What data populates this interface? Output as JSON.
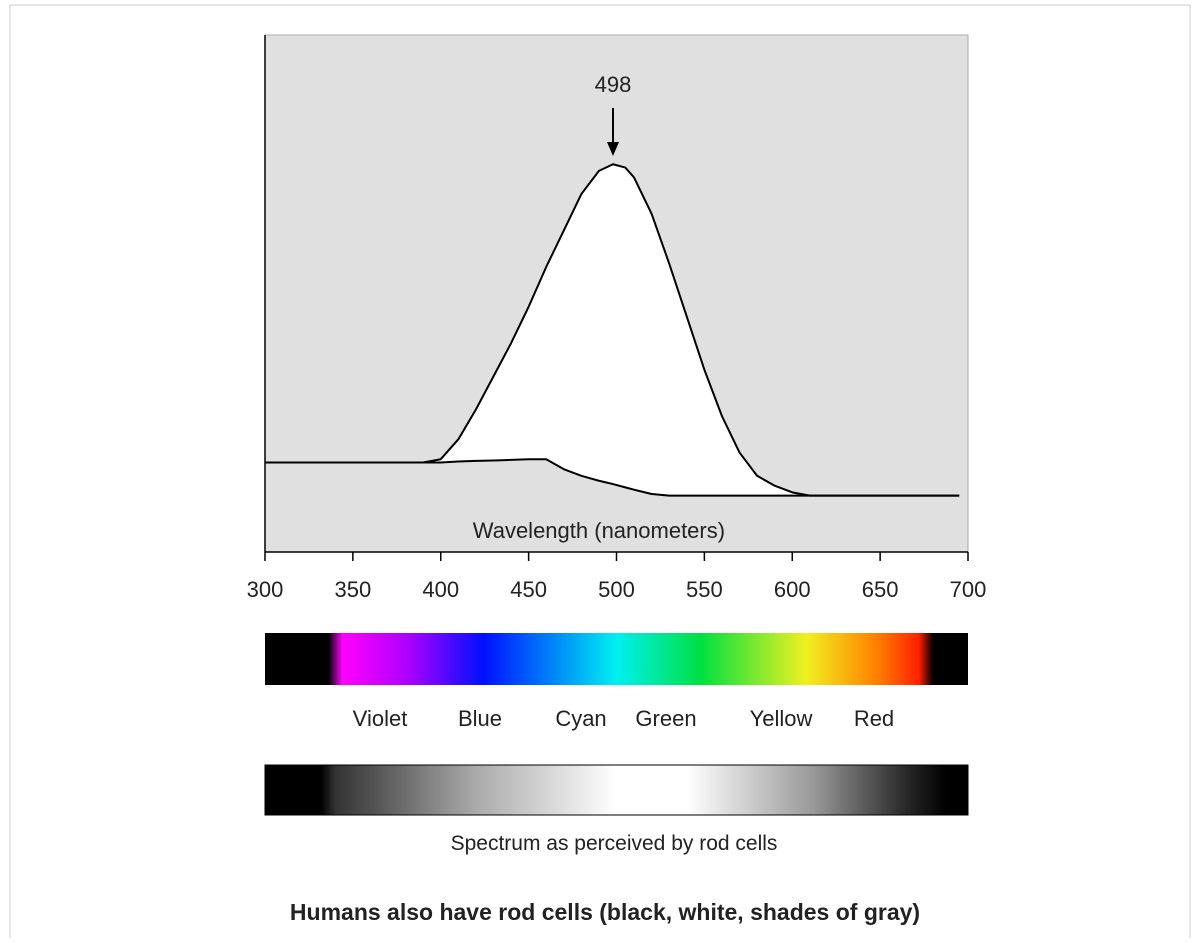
{
  "chart_data": {
    "type": "line",
    "x_label": "Wavelength (nanometers)",
    "x": [
      300,
      350,
      390,
      400,
      410,
      420,
      430,
      440,
      450,
      460,
      470,
      480,
      490,
      498,
      505,
      510,
      520,
      530,
      540,
      550,
      560,
      570,
      580,
      590,
      600,
      610,
      650,
      695
    ],
    "series": [
      {
        "color": "#000000",
        "values": [
          10,
          10,
          10,
          11,
          17,
          26,
          36,
          46,
          57,
          69,
          80,
          91,
          98,
          100,
          99,
          96,
          85,
          70,
          54,
          38,
          24,
          13,
          6,
          3,
          1,
          0,
          0,
          0
        ]
      },
      {
        "color": "#000000",
        "values": [
          10,
          10,
          10,
          10,
          10.3,
          10.5,
          10.6,
          10.8,
          11,
          11,
          8,
          6,
          4.5,
          3.5,
          2.5,
          1.8,
          0.5,
          0,
          0,
          0,
          0,
          0,
          0,
          0,
          0,
          0,
          0,
          0
        ]
      }
    ],
    "fill_between": "#ffffff",
    "background": "#e0e0e0",
    "annotation": {
      "x": 498
    },
    "xlim": [
      300,
      700
    ],
    "xticks": [
      300,
      350,
      400,
      450,
      500,
      550,
      600,
      650,
      700
    ],
    "ylim": [
      -17,
      139
    ]
  },
  "spectrum_labels": [
    "Violet",
    "Blue",
    "Cyan",
    "Green",
    "Yellow",
    "Red"
  ],
  "gray_caption": "Spectrum as perceived by rod cells",
  "footer": "Humans also have rod cells (black, white, shades of gray)"
}
